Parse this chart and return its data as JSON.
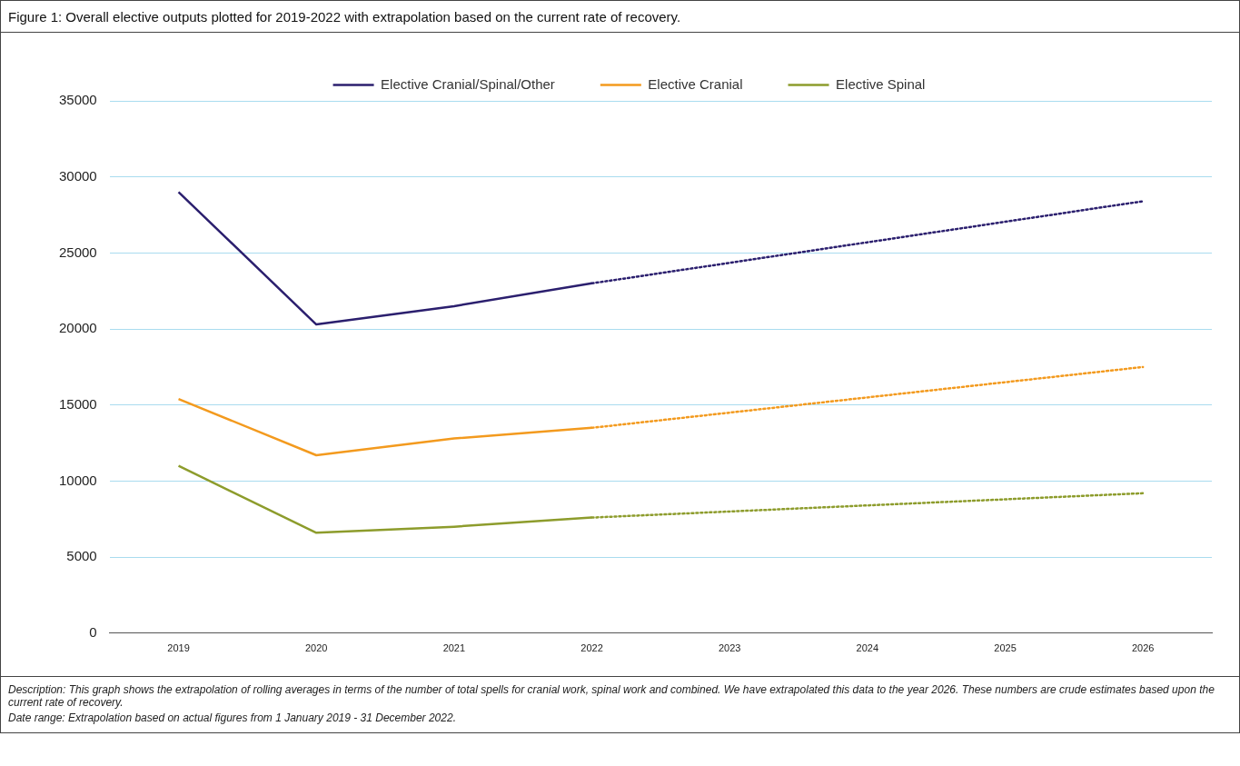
{
  "chart_data": {
    "type": "line",
    "title": "Figure 1: Overall elective outputs plotted for 2019-2022 with extrapolation based on the current rate of recovery.",
    "categories": [
      "2019",
      "2020",
      "2021",
      "2022",
      "2023",
      "2024",
      "2025",
      "2026"
    ],
    "series": [
      {
        "name": "Elective Cranial/Spinal/Other",
        "color": "#2b1f6e",
        "line_style": "solid",
        "values": [
          29000,
          20300,
          21500,
          23000,
          null,
          null,
          null,
          null
        ]
      },
      {
        "name": "Elective Cranial",
        "color": "#f39a1e",
        "line_style": "solid",
        "values": [
          15400,
          11700,
          12800,
          13500,
          null,
          null,
          null,
          null
        ]
      },
      {
        "name": "Elective Spinal",
        "color": "#8d9c2c",
        "line_style": "solid",
        "values": [
          11000,
          6600,
          7000,
          7600,
          null,
          null,
          null,
          null
        ]
      },
      {
        "color": "#2b1f6e",
        "line_style": "dotted",
        "values": [
          null,
          null,
          null,
          23000,
          24350,
          25700,
          27050,
          28400
        ]
      },
      {
        "color": "#f39a1e",
        "line_style": "dotted",
        "values": [
          null,
          null,
          null,
          13500,
          14500,
          15500,
          16500,
          17500
        ]
      },
      {
        "color": "#8d9c2c",
        "line_style": "dotted",
        "values": [
          null,
          null,
          null,
          7600,
          8000,
          8400,
          8800,
          9200
        ]
      }
    ],
    "ylim": [
      0,
      35000
    ],
    "yticks": [
      0,
      5000,
      10000,
      15000,
      20000,
      25000,
      30000,
      35000
    ],
    "grid": "y",
    "legend": "top",
    "marker": "none",
    "annotations": [
      "Description: This graph shows the extrapolation of rolling averages in terms of the number of total spells for cranial work, spinal work and combined. We have extrapolated this data to the year 2026. These numbers are crude estimates based upon the current rate of recovery.",
      "Date range: Extrapolation based on actual figures from 1 January 2019 - 31 December 2022."
    ]
  }
}
